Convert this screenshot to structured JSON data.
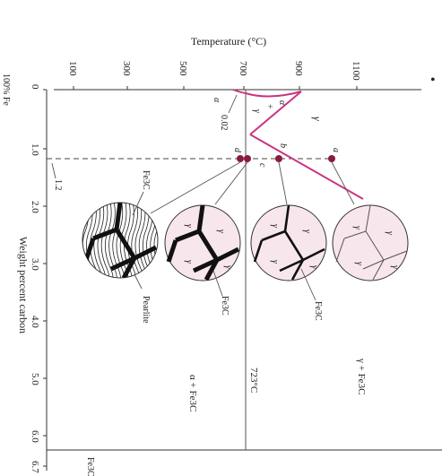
{
  "axes": {
    "temperature_title": "Temperature (°C)",
    "temperature_ticks": [
      "100",
      "300",
      "500",
      "700",
      "900",
      "1100"
    ],
    "composition_title": "Weight percent carbon",
    "composition_ticks": [
      "0",
      "1.0",
      "2.0",
      "3.0",
      "4.0",
      "5.0",
      "6.0",
      "6.7"
    ],
    "left_end_label": "100% Fe",
    "right_end_label": "Fe3C"
  },
  "annotations": {
    "eutectoid_carbon": "0.02",
    "alloy_composition": "1.2",
    "eutectoid_temp": "723°C",
    "marker_char": "•"
  },
  "regions": {
    "gamma": "γ",
    "alpha": "α",
    "alpha_plus_gamma_top": "α",
    "alpha_plus_gamma_mid": "+",
    "alpha_plus_gamma_bot": "γ",
    "gamma_plus_fe3c": "γ + Fe3C",
    "alpha_plus_fe3c": "α + Fe3C"
  },
  "points": {
    "a": "a",
    "b": "b",
    "c": "c",
    "d": "d"
  },
  "microstructures": {
    "fe3c_label_b": "Fe3C",
    "fe3c_label_c": "Fe3C",
    "fe3c_label_d": "Fe3C",
    "pearlite_label": "Pearlite",
    "grain_label": "γ"
  },
  "colors": {
    "phase_boundary": "#c8357f",
    "grain_fill": "#f7e6ec",
    "point_marker": "#8b1a3f",
    "axis": "#333333"
  }
}
